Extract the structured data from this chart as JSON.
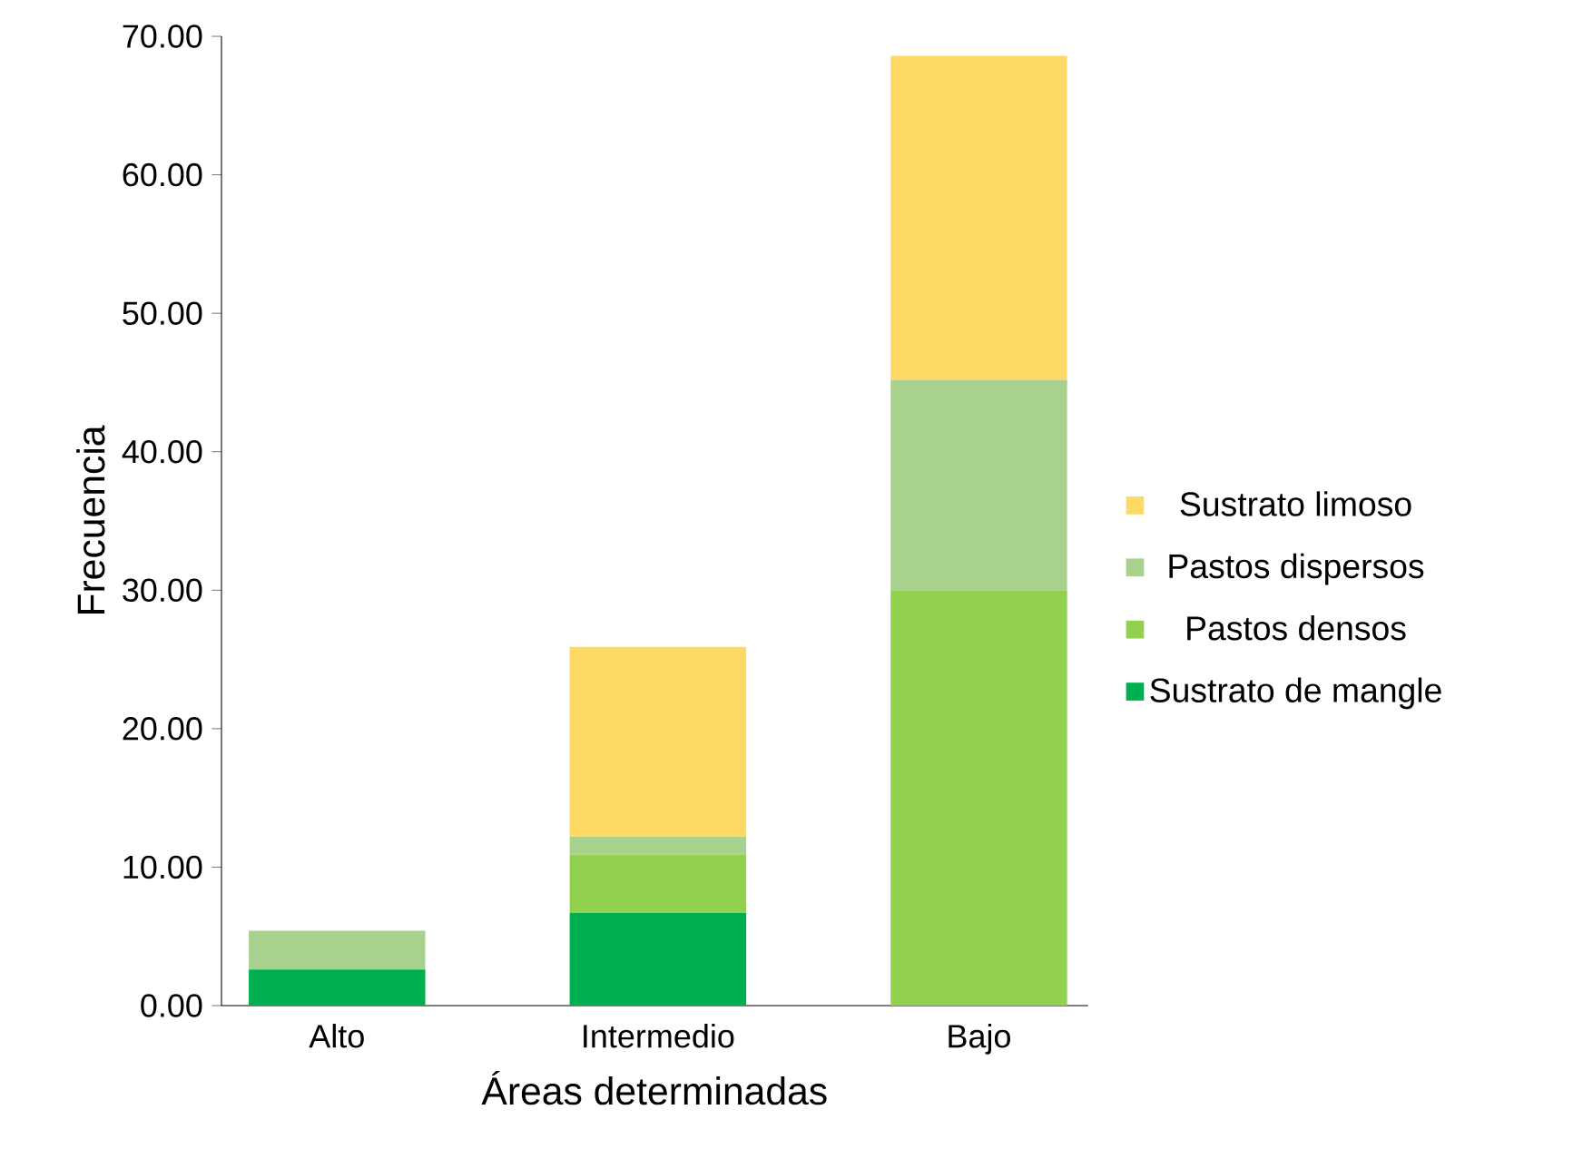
{
  "chart_data": {
    "type": "bar",
    "stacked": true,
    "xlabel": "Áreas determinadas",
    "ylabel": "Frecuencia",
    "categories": [
      "Alto",
      "Intermedio",
      "Bajo"
    ],
    "series": [
      {
        "name": "Sustrato de mangle",
        "color": "#00b050",
        "values": [
          2.6,
          6.7,
          0
        ]
      },
      {
        "name": "Pastos densos",
        "color": "#92d050",
        "values": [
          0,
          4.2,
          30.0
        ]
      },
      {
        "name": "Pastos dispersos",
        "color": "#a9d18e",
        "values": [
          2.8,
          1.3,
          15.2
        ]
      },
      {
        "name": "Sustrato limoso",
        "color": "#ffd966",
        "values": [
          0,
          13.7,
          23.4
        ]
      }
    ],
    "ylim": [
      0,
      70
    ],
    "yticks": [
      {
        "value": 0,
        "label": "0.00"
      },
      {
        "value": 10,
        "label": "10.00"
      },
      {
        "value": 20,
        "label": "20.00"
      },
      {
        "value": 30,
        "label": "30.00"
      },
      {
        "value": 40,
        "label": "40.00"
      },
      {
        "value": 50,
        "label": "50.00"
      },
      {
        "value": 60,
        "label": "60.00"
      },
      {
        "value": 70,
        "label": "70.00"
      }
    ],
    "grid": false,
    "legend": "right"
  }
}
